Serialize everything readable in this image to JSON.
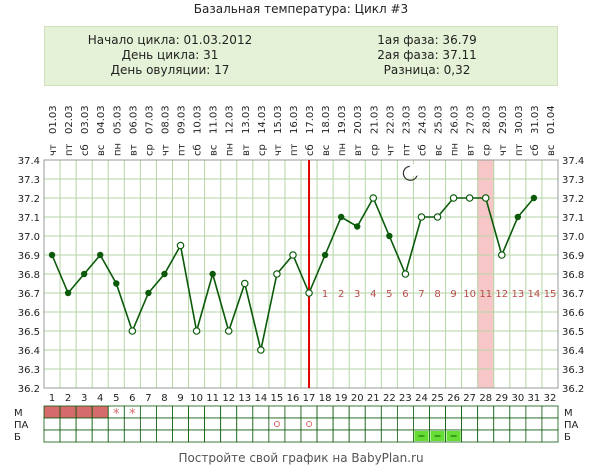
{
  "chart_data": {
    "type": "line",
    "title": "Базальная температура: Цикл #3",
    "info": {
      "left": [
        "Начало цикла: 01.03.2012",
        "День цикла: 31",
        "День овуляции: 17"
      ],
      "right": [
        "1ая фаза: 36.79",
        "2ая фаза: 37.11",
        "Разница: 0,32"
      ]
    },
    "dates": [
      "01.03",
      "02.03",
      "03.03",
      "04.03",
      "05.03",
      "06.03",
      "07.03",
      "08.03",
      "09.03",
      "10.03",
      "11.03",
      "12.03",
      "13.03",
      "14.03",
      "15.03",
      "16.03",
      "17.03",
      "18.03",
      "19.03",
      "20.03",
      "21.03",
      "22.03",
      "23.03",
      "24.03",
      "25.03",
      "26.03",
      "27.03",
      "28.03",
      "29.03",
      "30.03",
      "31.03",
      "01.04"
    ],
    "weekdays": [
      "чт",
      "пт",
      "сб",
      "вс",
      "пн",
      "вт",
      "ср",
      "чт",
      "пт",
      "сб",
      "вс",
      "пн",
      "вт",
      "ср",
      "чт",
      "пт",
      "сб",
      "вс",
      "пн",
      "вт",
      "ср",
      "чт",
      "пт",
      "сб",
      "вс",
      "пн",
      "вт",
      "ср",
      "чт",
      "пт",
      "сб",
      "вс"
    ],
    "days": [
      "1",
      "2",
      "3",
      "4",
      "5",
      "6",
      "7",
      "8",
      "9",
      "10",
      "11",
      "12",
      "13",
      "14",
      "15",
      "16",
      "17",
      "18",
      "19",
      "20",
      "21",
      "22",
      "23",
      "24",
      "25",
      "26",
      "27",
      "28",
      "29",
      "30",
      "31",
      "32"
    ],
    "y_ticks": [
      "36.2",
      "36.3",
      "36.4",
      "36.5",
      "36.6",
      "36.7",
      "36.8",
      "36.9",
      "37.0",
      "37.1",
      "37.2",
      "37.3",
      "37.4"
    ],
    "ylim": [
      36.2,
      37.4
    ],
    "series": [
      {
        "values": [
          36.9,
          36.7,
          36.8,
          36.9,
          36.75,
          36.5,
          36.7,
          36.8,
          36.95,
          36.5,
          36.8,
          36.5,
          36.75,
          36.4,
          36.8,
          36.9,
          36.7,
          36.9,
          37.1,
          37.05,
          37.2,
          37.0,
          36.8,
          37.1,
          37.1,
          37.2,
          37.2,
          37.2,
          36.9,
          37.1,
          37.2,
          null
        ],
        "open_points": [
          6,
          9,
          10,
          12,
          13,
          14,
          15,
          16,
          17,
          21,
          23,
          24,
          25,
          26,
          27,
          28,
          29
        ]
      }
    ],
    "ovulation_day": 17,
    "highlight_day": 28,
    "luteal_labels": [
      "1",
      "2",
      "3",
      "4",
      "5",
      "6",
      "7",
      "8",
      "9",
      "10",
      "11",
      "12",
      "13",
      "14",
      "15"
    ],
    "moon_day": 23,
    "moon_icon": "crescent-moon-icon",
    "grid": true,
    "rows": [
      {
        "label": "М",
        "filled_days": [
          1,
          2,
          3,
          4
        ],
        "star_days": [
          5,
          6
        ]
      },
      {
        "label": "ПА",
        "circle_days": [
          15,
          17
        ]
      },
      {
        "label": "Б",
        "dash_days": [
          24,
          25,
          26
        ]
      }
    ],
    "colors": {
      "line": "#0a5a0a",
      "ovulation": "#e00000",
      "highlight": "#f7c6c6",
      "menses": "#d66b6b",
      "discharge": "#66dd33",
      "luteal_labels": "#b84a4a",
      "grid": "#b5d5a5"
    }
  },
  "footer": "Постройте свой график на BabyPlan.ru"
}
